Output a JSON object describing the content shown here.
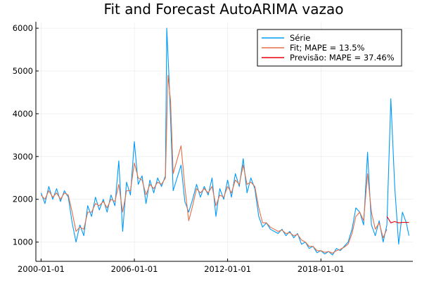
{
  "chart_data": {
    "type": "line",
    "title": "Fit and Forecast AutoARIMA vazao",
    "xlabel": "",
    "ylabel": "",
    "x_type": "date",
    "xlim": [
      "1999-09-01",
      "2023-12-01"
    ],
    "ylim": [
      550,
      6150
    ],
    "x_ticks": [
      "2000-01-01",
      "2006-01-01",
      "2012-01-01",
      "2018-01-01"
    ],
    "y_ticks": [
      1000,
      2000,
      3000,
      4000,
      5000,
      6000
    ],
    "grid": true,
    "legend_position": "top-right",
    "series": [
      {
        "name": "Série",
        "color": "#009AFA",
        "points": [
          [
            "2000-01-01",
            2150
          ],
          [
            "2000-04-01",
            1900
          ],
          [
            "2000-07-01",
            2300
          ],
          [
            "2000-10-01",
            2000
          ],
          [
            "2001-01-01",
            2250
          ],
          [
            "2001-04-01",
            1950
          ],
          [
            "2001-07-01",
            2200
          ],
          [
            "2001-10-01",
            2050
          ],
          [
            "2002-01-01",
            1450
          ],
          [
            "2002-04-01",
            1000
          ],
          [
            "2002-07-01",
            1400
          ],
          [
            "2002-10-01",
            1150
          ],
          [
            "2003-01-01",
            1850
          ],
          [
            "2003-04-01",
            1600
          ],
          [
            "2003-07-01",
            2050
          ],
          [
            "2003-10-01",
            1750
          ],
          [
            "2004-01-01",
            2000
          ],
          [
            "2004-04-01",
            1700
          ],
          [
            "2004-07-01",
            2100
          ],
          [
            "2004-10-01",
            1850
          ],
          [
            "2005-01-01",
            2900
          ],
          [
            "2005-04-01",
            1250
          ],
          [
            "2005-07-01",
            2400
          ],
          [
            "2005-10-01",
            2100
          ],
          [
            "2006-01-01",
            3350
          ],
          [
            "2006-04-01",
            2350
          ],
          [
            "2006-07-01",
            2550
          ],
          [
            "2006-10-01",
            1900
          ],
          [
            "2007-01-01",
            2450
          ],
          [
            "2007-04-01",
            2150
          ],
          [
            "2007-07-01",
            2500
          ],
          [
            "2007-10-01",
            2300
          ],
          [
            "2008-01-01",
            2550
          ],
          [
            "2008-02-01",
            6000
          ],
          [
            "2008-04-01",
            4700
          ],
          [
            "2008-07-01",
            2200
          ],
          [
            "2009-01-01",
            2800
          ],
          [
            "2009-04-01",
            1950
          ],
          [
            "2009-07-01",
            1700
          ],
          [
            "2009-10-01",
            2000
          ],
          [
            "2010-01-01",
            2350
          ],
          [
            "2010-04-01",
            2050
          ],
          [
            "2010-07-01",
            2300
          ],
          [
            "2010-10-01",
            2100
          ],
          [
            "2011-01-01",
            2500
          ],
          [
            "2011-04-01",
            1600
          ],
          [
            "2011-07-01",
            2250
          ],
          [
            "2011-10-01",
            2000
          ],
          [
            "2012-01-01",
            2450
          ],
          [
            "2012-04-01",
            2050
          ],
          [
            "2012-07-01",
            2600
          ],
          [
            "2012-10-01",
            2300
          ],
          [
            "2013-01-01",
            2950
          ],
          [
            "2013-04-01",
            2150
          ],
          [
            "2013-07-01",
            2500
          ],
          [
            "2013-10-01",
            2250
          ],
          [
            "2014-01-01",
            1600
          ],
          [
            "2014-04-01",
            1350
          ],
          [
            "2014-07-01",
            1450
          ],
          [
            "2014-10-01",
            1300
          ],
          [
            "2015-01-01",
            1250
          ],
          [
            "2015-04-01",
            1200
          ],
          [
            "2015-07-01",
            1300
          ],
          [
            "2015-10-01",
            1150
          ],
          [
            "2016-01-01",
            1250
          ],
          [
            "2016-04-01",
            1100
          ],
          [
            "2016-07-01",
            1200
          ],
          [
            "2016-10-01",
            950
          ],
          [
            "2017-01-01",
            1000
          ],
          [
            "2017-04-01",
            850
          ],
          [
            "2017-07-01",
            900
          ],
          [
            "2017-10-01",
            750
          ],
          [
            "2018-01-01",
            800
          ],
          [
            "2018-04-01",
            720
          ],
          [
            "2018-07-01",
            780
          ],
          [
            "2018-10-01",
            700
          ],
          [
            "2019-01-01",
            850
          ],
          [
            "2019-04-01",
            800
          ],
          [
            "2019-07-01",
            900
          ],
          [
            "2019-10-01",
            1000
          ],
          [
            "2020-01-01",
            1300
          ],
          [
            "2020-04-01",
            1800
          ],
          [
            "2020-07-01",
            1700
          ],
          [
            "2020-10-01",
            1400
          ],
          [
            "2021-01-01",
            3100
          ],
          [
            "2021-04-01",
            1400
          ],
          [
            "2021-07-01",
            1150
          ],
          [
            "2021-10-01",
            1500
          ],
          [
            "2022-01-01",
            1000
          ],
          [
            "2022-04-01",
            1400
          ],
          [
            "2022-07-01",
            4350
          ],
          [
            "2022-10-01",
            2300
          ],
          [
            "2023-01-01",
            950
          ],
          [
            "2023-04-01",
            1700
          ],
          [
            "2023-07-01",
            1450
          ],
          [
            "2023-09-01",
            1150
          ]
        ]
      },
      {
        "name": "Fit; MAPE = 13.5%",
        "color": "#E26F46",
        "points": [
          [
            "2000-01-01",
            2100
          ],
          [
            "2000-04-01",
            2000
          ],
          [
            "2000-07-01",
            2200
          ],
          [
            "2000-10-01",
            2050
          ],
          [
            "2001-01-01",
            2150
          ],
          [
            "2001-04-01",
            2000
          ],
          [
            "2001-07-01",
            2150
          ],
          [
            "2001-10-01",
            2100
          ],
          [
            "2002-01-01",
            1700
          ],
          [
            "2002-04-01",
            1250
          ],
          [
            "2002-07-01",
            1350
          ],
          [
            "2002-10-01",
            1300
          ],
          [
            "2003-01-01",
            1700
          ],
          [
            "2003-04-01",
            1700
          ],
          [
            "2003-07-01",
            1900
          ],
          [
            "2003-10-01",
            1850
          ],
          [
            "2004-01-01",
            1950
          ],
          [
            "2004-04-01",
            1800
          ],
          [
            "2004-07-01",
            2000
          ],
          [
            "2004-10-01",
            1950
          ],
          [
            "2005-01-01",
            2350
          ],
          [
            "2005-04-01",
            1700
          ],
          [
            "2005-07-01",
            2200
          ],
          [
            "2005-10-01",
            2200
          ],
          [
            "2006-01-01",
            2850
          ],
          [
            "2006-04-01",
            2500
          ],
          [
            "2006-07-01",
            2450
          ],
          [
            "2006-10-01",
            2100
          ],
          [
            "2007-01-01",
            2350
          ],
          [
            "2007-04-01",
            2250
          ],
          [
            "2007-07-01",
            2400
          ],
          [
            "2007-10-01",
            2350
          ],
          [
            "2008-01-01",
            2500
          ],
          [
            "2008-03-01",
            4900
          ],
          [
            "2008-05-01",
            4300
          ],
          [
            "2008-07-01",
            2600
          ],
          [
            "2009-01-01",
            3250
          ],
          [
            "2009-04-01",
            2300
          ],
          [
            "2009-07-01",
            1500
          ],
          [
            "2009-10-01",
            1850
          ],
          [
            "2010-01-01",
            2250
          ],
          [
            "2010-04-01",
            2150
          ],
          [
            "2010-07-01",
            2250
          ],
          [
            "2010-10-01",
            2150
          ],
          [
            "2011-01-01",
            2300
          ],
          [
            "2011-04-01",
            1850
          ],
          [
            "2011-07-01",
            2100
          ],
          [
            "2011-10-01",
            2050
          ],
          [
            "2012-01-01",
            2300
          ],
          [
            "2012-04-01",
            2150
          ],
          [
            "2012-07-01",
            2450
          ],
          [
            "2012-10-01",
            2350
          ],
          [
            "2013-01-01",
            2800
          ],
          [
            "2013-04-01",
            2350
          ],
          [
            "2013-07-01",
            2400
          ],
          [
            "2013-10-01",
            2300
          ],
          [
            "2014-01-01",
            1800
          ],
          [
            "2014-04-01",
            1450
          ],
          [
            "2014-07-01",
            1450
          ],
          [
            "2014-10-01",
            1350
          ],
          [
            "2015-01-01",
            1300
          ],
          [
            "2015-04-01",
            1250
          ],
          [
            "2015-07-01",
            1280
          ],
          [
            "2015-10-01",
            1200
          ],
          [
            "2016-01-01",
            1220
          ],
          [
            "2016-04-01",
            1150
          ],
          [
            "2016-07-01",
            1180
          ],
          [
            "2016-10-01",
            1050
          ],
          [
            "2017-01-01",
            1000
          ],
          [
            "2017-04-01",
            900
          ],
          [
            "2017-07-01",
            900
          ],
          [
            "2017-10-01",
            800
          ],
          [
            "2018-01-01",
            800
          ],
          [
            "2018-04-01",
            760
          ],
          [
            "2018-07-01",
            780
          ],
          [
            "2018-10-01",
            740
          ],
          [
            "2019-01-01",
            800
          ],
          [
            "2019-04-01",
            830
          ],
          [
            "2019-07-01",
            880
          ],
          [
            "2019-10-01",
            950
          ],
          [
            "2020-01-01",
            1200
          ],
          [
            "2020-04-01",
            1600
          ],
          [
            "2020-07-01",
            1700
          ],
          [
            "2020-10-01",
            1500
          ],
          [
            "2021-01-01",
            2600
          ],
          [
            "2021-04-01",
            1700
          ],
          [
            "2021-07-01",
            1300
          ],
          [
            "2021-10-01",
            1450
          ],
          [
            "2022-01-01",
            1100
          ],
          [
            "2022-04-01",
            1300
          ]
        ]
      },
      {
        "name": "Previsão: MAPE = 37.46%",
        "color": "#E8000B",
        "points": [
          [
            "2022-04-01",
            1600
          ],
          [
            "2022-07-01",
            1450
          ],
          [
            "2022-10-01",
            1480
          ],
          [
            "2023-01-01",
            1450
          ],
          [
            "2023-04-01",
            1460
          ],
          [
            "2023-09-01",
            1460
          ]
        ]
      }
    ]
  }
}
